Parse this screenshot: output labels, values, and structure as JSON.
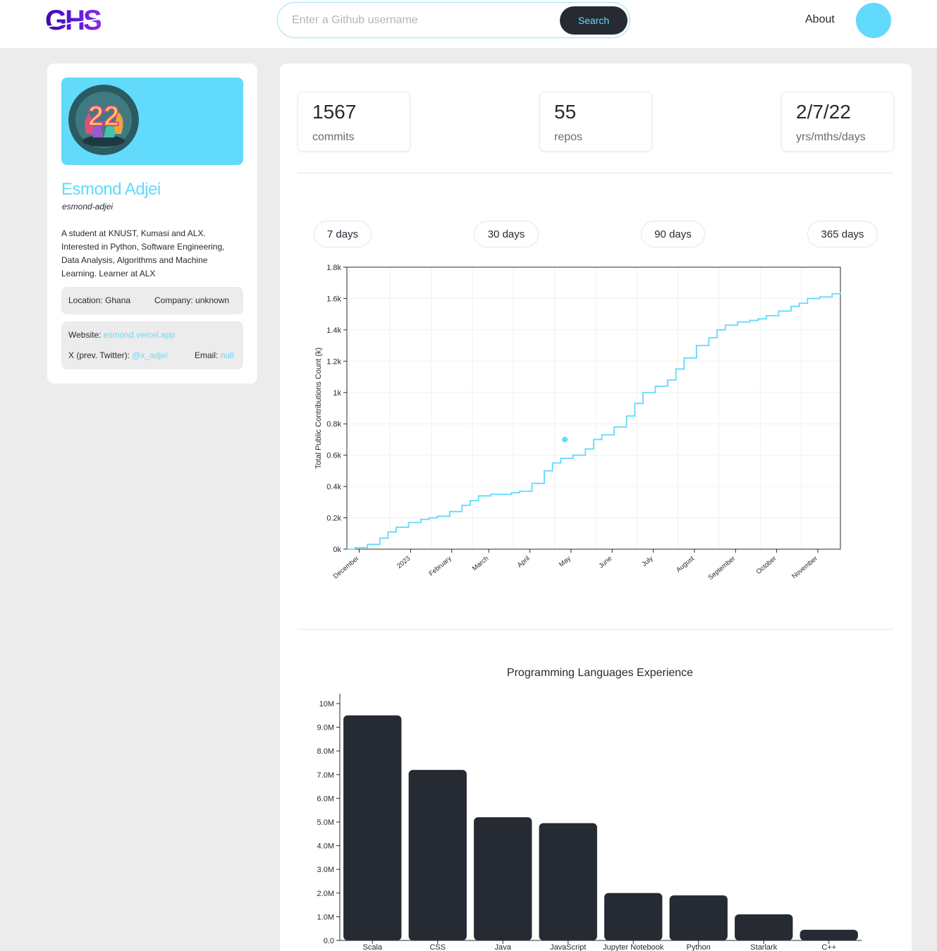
{
  "header": {
    "logo_text": "GHS",
    "search_placeholder": "Enter a Github username",
    "search_button": "Search",
    "about_label": "About"
  },
  "profile": {
    "name": "Esmond Adjei",
    "username": "esmond-adjei",
    "bio": "A student at KNUST, Kumasi and ALX. Interested in Python, Software Engineering, Data Analysis, Algorithms and Machine Learning. Learner at ALX",
    "location": "Location: Ghana",
    "company": "Company: unknown",
    "website_label": "Website: ",
    "website": "esmond.vercel.app",
    "twitter_label": "X (prev. Twitter): ",
    "twitter": "@x_adjei",
    "email_label": "Email: ",
    "email": "null"
  },
  "stats": {
    "commits_value": "1567",
    "commits_label": "commits",
    "repos_value": "55",
    "repos_label": "repos",
    "age_value": "2/7/22",
    "age_label": "yrs/mths/days"
  },
  "ranges": [
    "7 days",
    "30 days",
    "90 days",
    "365 days"
  ],
  "colors": {
    "accent": "#61dafb",
    "dark": "#262a33",
    "background": "#ececec"
  },
  "chart_data": [
    {
      "type": "line",
      "title": "",
      "xlabel": "",
      "ylabel": "Total Public Contributions Count (k)",
      "ylim": [
        0,
        1.8
      ],
      "y_ticks": [
        "0k",
        "0.2k",
        "0.4k",
        "0.6k",
        "0.8k",
        "1k",
        "1.2k",
        "1.4k",
        "1.6k",
        "1.8k"
      ],
      "x_ticks": [
        "December",
        "2023",
        "February",
        "March",
        "April",
        "May",
        "June",
        "July",
        "August",
        "September",
        "October",
        "November"
      ],
      "grid": true,
      "series": [
        {
          "x": [
            0,
            0.2,
            0.5,
            0.8,
            1.0,
            1.2,
            1.5,
            1.8,
            2.0,
            2.2,
            2.5,
            2.8,
            3.0,
            3.2,
            3.5,
            3.8,
            4.0,
            4.2,
            4.5,
            4.8,
            5.0,
            5.2,
            5.5,
            5.8,
            6.0,
            6.2,
            6.5,
            6.8,
            7.0,
            7.2,
            7.5,
            7.8,
            8.0,
            8.2,
            8.5,
            8.8,
            9.0,
            9.2,
            9.5,
            9.8,
            10.0,
            10.2,
            10.5,
            10.8,
            11.0,
            11.2,
            11.5,
            11.8,
            12.0
          ],
          "y": [
            0.0,
            0.01,
            0.03,
            0.07,
            0.11,
            0.14,
            0.17,
            0.19,
            0.2,
            0.21,
            0.24,
            0.28,
            0.31,
            0.34,
            0.35,
            0.35,
            0.36,
            0.37,
            0.42,
            0.5,
            0.55,
            0.58,
            0.6,
            0.64,
            0.7,
            0.73,
            0.78,
            0.85,
            0.93,
            1.0,
            1.04,
            1.08,
            1.15,
            1.22,
            1.3,
            1.35,
            1.4,
            1.43,
            1.45,
            1.46,
            1.47,
            1.49,
            1.52,
            1.55,
            1.57,
            1.6,
            1.61,
            1.63,
            1.64
          ],
          "highlight_point": {
            "x": 5.3,
            "y": 0.7
          }
        }
      ]
    },
    {
      "type": "bar",
      "title": "Programming Languages Experience",
      "xlabel": "",
      "ylabel": "",
      "ylim": [
        0,
        10
      ],
      "y_ticks": [
        "0.0",
        "1.0M",
        "2.0M",
        "3.0M",
        "4.0M",
        "5.0M",
        "6.0M",
        "7.0M",
        "8.0M",
        "9.0M",
        "10M"
      ],
      "categories": [
        "Scala",
        "CSS",
        "Java",
        "JavaScript",
        "Jupyter Notebook",
        "Python",
        "Starlark",
        "C++"
      ],
      "values": [
        9.5,
        7.2,
        5.2,
        4.95,
        2.0,
        1.9,
        1.1,
        0.45
      ]
    }
  ]
}
